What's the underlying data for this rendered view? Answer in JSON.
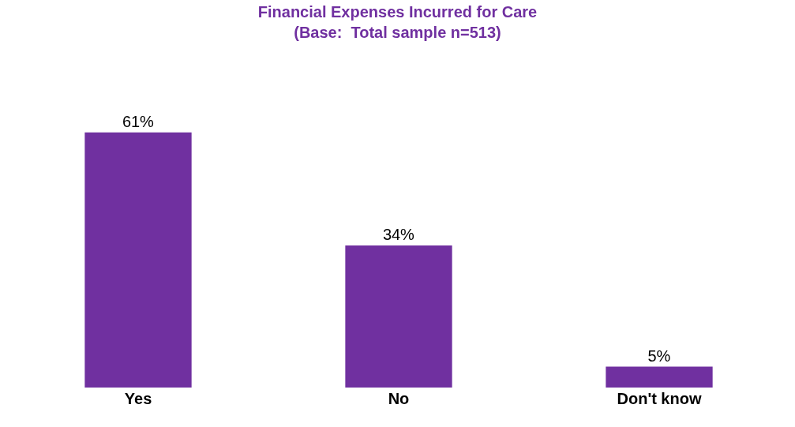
{
  "chart_data": {
    "type": "bar",
    "title": "Financial Expenses Incurred for Care",
    "subtitle": "(Base:  Total sample n=513)",
    "categories": [
      "Yes",
      "No",
      "Don't know"
    ],
    "values": [
      61,
      34,
      5
    ],
    "value_labels": [
      "61%",
      "34%",
      "5%"
    ],
    "color": "#7030a0"
  }
}
